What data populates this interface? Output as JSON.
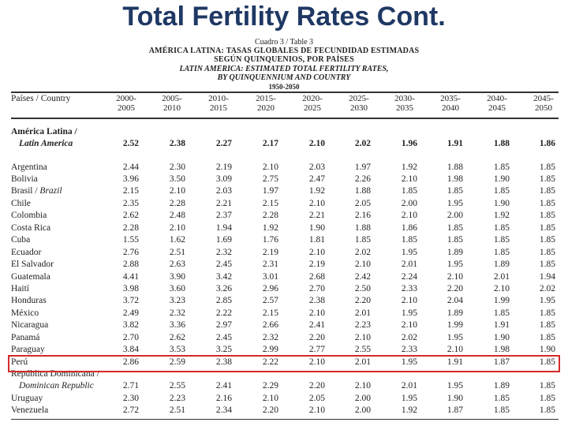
{
  "slide_title": "Total Fertility Rates Cont.",
  "caption": {
    "line1": "Cuadro 3 / Table 3",
    "line2": "AMÉRICA LATINA: TASAS GLOBALES DE FECUNDIDAD ESTIMADAS",
    "line3": "SEGÚN QUINQUENIOS, POR PAÍSES",
    "line4": "LATIN AMERICA: ESTIMATED TOTAL FERTILITY RATES,",
    "line5": "BY QUINQUENNIUM AND COUNTRY",
    "line6": "1950-2050"
  },
  "table": {
    "country_header": "Países / Country",
    "periods": [
      {
        "top": "2000-",
        "bottom": "2005"
      },
      {
        "top": "2005-",
        "bottom": "2010"
      },
      {
        "top": "2010-",
        "bottom": "2015"
      },
      {
        "top": "2015-",
        "bottom": "2020"
      },
      {
        "top": "2020-",
        "bottom": "2025"
      },
      {
        "top": "2025-",
        "bottom": "2030"
      },
      {
        "top": "2030-",
        "bottom": "2035"
      },
      {
        "top": "2035-",
        "bottom": "2040"
      },
      {
        "top": "2040-",
        "bottom": "2045"
      },
      {
        "top": "2045-",
        "bottom": "2050"
      }
    ],
    "region": {
      "name_line1": "América Latina /",
      "name_line2": "Latin America",
      "values": [
        "2.52",
        "2.38",
        "2.27",
        "2.17",
        "2.10",
        "2.02",
        "1.96",
        "1.91",
        "1.88",
        "1.86"
      ]
    },
    "rows": [
      {
        "name": "Argentina",
        "values": [
          "2.44",
          "2.30",
          "2.19",
          "2.10",
          "2.03",
          "1.97",
          "1.92",
          "1.88",
          "1.85",
          "1.85"
        ]
      },
      {
        "name": "Bolivia",
        "values": [
          "3.96",
          "3.50",
          "3.09",
          "2.75",
          "2.47",
          "2.26",
          "2.10",
          "1.98",
          "1.90",
          "1.85"
        ]
      },
      {
        "name": "Brasil / Brazil",
        "values": [
          "2.15",
          "2.10",
          "2.03",
          "1.97",
          "1.92",
          "1.88",
          "1.85",
          "1.85",
          "1.85",
          "1.85"
        ]
      },
      {
        "name": "Chile",
        "values": [
          "2.35",
          "2.28",
          "2.21",
          "2.15",
          "2.10",
          "2.05",
          "2.00",
          "1.95",
          "1.90",
          "1.85"
        ]
      },
      {
        "name": "Colombia",
        "values": [
          "2.62",
          "2.48",
          "2.37",
          "2.28",
          "2.21",
          "2.16",
          "2.10",
          "2.00",
          "1.92",
          "1.85"
        ]
      },
      {
        "name": "Costa Rica",
        "values": [
          "2.28",
          "2.10",
          "1.94",
          "1.92",
          "1.90",
          "1.88",
          "1.86",
          "1.85",
          "1.85",
          "1.85"
        ]
      },
      {
        "name": "Cuba",
        "values": [
          "1.55",
          "1.62",
          "1.69",
          "1.76",
          "1.81",
          "1.85",
          "1.85",
          "1.85",
          "1.85",
          "1.85"
        ]
      },
      {
        "name": "Ecuador",
        "values": [
          "2.76",
          "2.51",
          "2.32",
          "2.19",
          "2.10",
          "2.02",
          "1.95",
          "1.89",
          "1.85",
          "1.85"
        ]
      },
      {
        "name": "El Salvador",
        "values": [
          "2.88",
          "2.63",
          "2.45",
          "2.31",
          "2.19",
          "2.10",
          "2.01",
          "1.95",
          "1.89",
          "1.85"
        ]
      },
      {
        "name": "Guatemala",
        "values": [
          "4.41",
          "3.90",
          "3.42",
          "3.01",
          "2.68",
          "2.42",
          "2.24",
          "2.10",
          "2.01",
          "1.94"
        ]
      },
      {
        "name": "Haití",
        "values": [
          "3.98",
          "3.60",
          "3.26",
          "2.96",
          "2.70",
          "2.50",
          "2.33",
          "2.20",
          "2.10",
          "2.02"
        ]
      },
      {
        "name": "Honduras",
        "values": [
          "3.72",
          "3.23",
          "2.85",
          "2.57",
          "2.38",
          "2.20",
          "2.10",
          "2.04",
          "1.99",
          "1.95"
        ]
      },
      {
        "name": "México",
        "values": [
          "2.49",
          "2.32",
          "2.22",
          "2.15",
          "2.10",
          "2.01",
          "1.95",
          "1.89",
          "1.85",
          "1.85"
        ]
      },
      {
        "name": "Nicaragua",
        "values": [
          "3.82",
          "3.36",
          "2.97",
          "2.66",
          "2.41",
          "2.23",
          "2.10",
          "1.99",
          "1.91",
          "1.85"
        ]
      },
      {
        "name": "Panamá",
        "values": [
          "2.70",
          "2.62",
          "2.45",
          "2.32",
          "2.20",
          "2.10",
          "2.02",
          "1.95",
          "1.90",
          "1.85"
        ]
      },
      {
        "name": "Paraguay",
        "values": [
          "3.84",
          "3.53",
          "3.25",
          "2.99",
          "2.77",
          "2.55",
          "2.33",
          "2.10",
          "1.98",
          "1.90"
        ]
      },
      {
        "name": "Perú",
        "values": [
          "2.86",
          "2.59",
          "2.38",
          "2.22",
          "2.10",
          "2.01",
          "1.95",
          "1.91",
          "1.87",
          "1.85"
        ]
      },
      {
        "name": "República Dominicana /",
        "name_line2": "Dominican Republic",
        "values": [
          "2.71",
          "2.55",
          "2.41",
          "2.29",
          "2.20",
          "2.10",
          "2.01",
          "1.95",
          "1.89",
          "1.85"
        ]
      },
      {
        "name": "Uruguay",
        "values": [
          "2.30",
          "2.23",
          "2.16",
          "2.10",
          "2.05",
          "2.00",
          "1.95",
          "1.90",
          "1.85",
          "1.85"
        ]
      },
      {
        "name": "Venezuela",
        "values": [
          "2.72",
          "2.51",
          "2.34",
          "2.20",
          "2.10",
          "2.00",
          "1.92",
          "1.87",
          "1.85",
          "1.85"
        ]
      }
    ],
    "highlighted_row": "Perú",
    "highlight_color": "#d42a2a",
    "title_color": "#1f3864"
  }
}
